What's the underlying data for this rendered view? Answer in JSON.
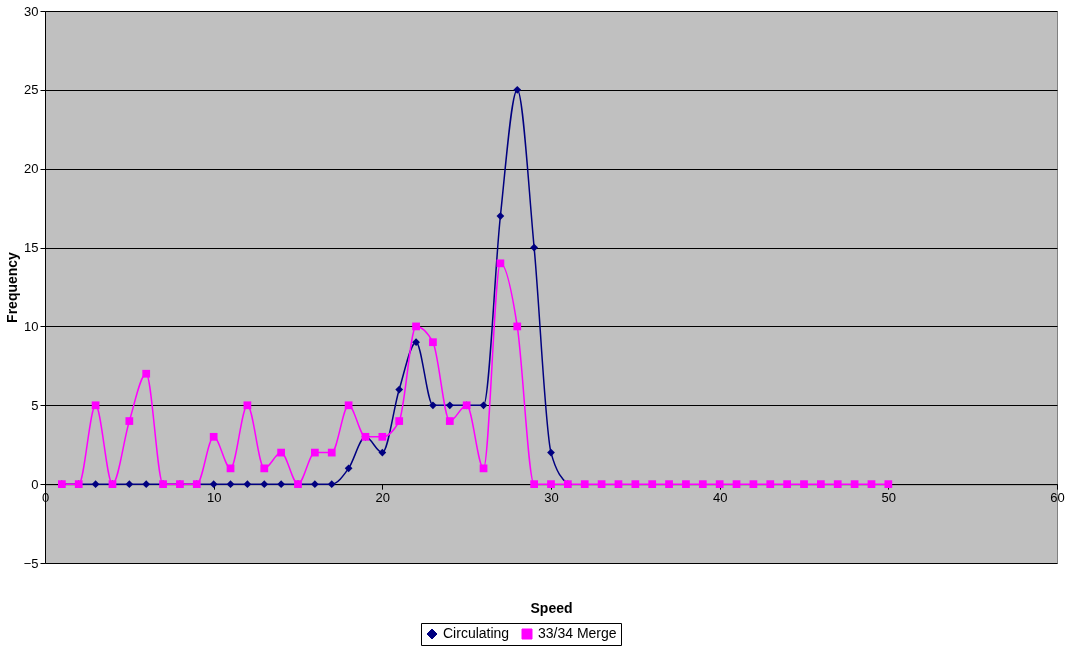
{
  "chart_data": {
    "type": "line",
    "xlabel": "Speed",
    "ylabel": "Frequency",
    "x": [
      1,
      2,
      3,
      4,
      5,
      6,
      7,
      8,
      9,
      10,
      11,
      12,
      13,
      14,
      15,
      16,
      17,
      18,
      19,
      20,
      21,
      22,
      23,
      24,
      25,
      26,
      27,
      28,
      29,
      30,
      31,
      32,
      33,
      34,
      35,
      36,
      37,
      38,
      39,
      40,
      41,
      42,
      43,
      44,
      45,
      46,
      47,
      48,
      49,
      50
    ],
    "series": [
      {
        "name": "Circulating",
        "color": "#000080",
        "marker": "diamond",
        "values": [
          0,
          0,
          0,
          0,
          0,
          0,
          0,
          0,
          0,
          0,
          0,
          0,
          0,
          0,
          0,
          0,
          0,
          1,
          3,
          2,
          6,
          9,
          5,
          5,
          5,
          5,
          17,
          25,
          15,
          2,
          0,
          null,
          null,
          null,
          null,
          null,
          null,
          null,
          null,
          null,
          null,
          null,
          null,
          null,
          null,
          null,
          null,
          null,
          null,
          null
        ]
      },
      {
        "name": "33/34 Merge",
        "color": "#ff00ff",
        "marker": "square",
        "values": [
          0,
          0,
          5,
          0,
          4,
          7,
          0,
          0,
          0,
          3,
          1,
          5,
          1,
          2,
          0,
          2,
          2,
          5,
          3,
          3,
          4,
          10,
          9,
          4,
          5,
          1,
          14,
          10,
          0,
          0,
          0,
          0,
          0,
          0,
          0,
          0,
          0,
          0,
          0,
          0,
          0,
          0,
          0,
          0,
          0,
          0,
          0,
          0,
          0,
          0
        ]
      }
    ],
    "xlim": [
      0,
      60
    ],
    "xticks": [
      0,
      10,
      20,
      30,
      40,
      50,
      60
    ],
    "ylim": [
      -5,
      30
    ],
    "yticks": [
      -5,
      0,
      5,
      10,
      15,
      20,
      25,
      30
    ],
    "grid": "y",
    "legend": "bottom",
    "line_style": "solid"
  }
}
